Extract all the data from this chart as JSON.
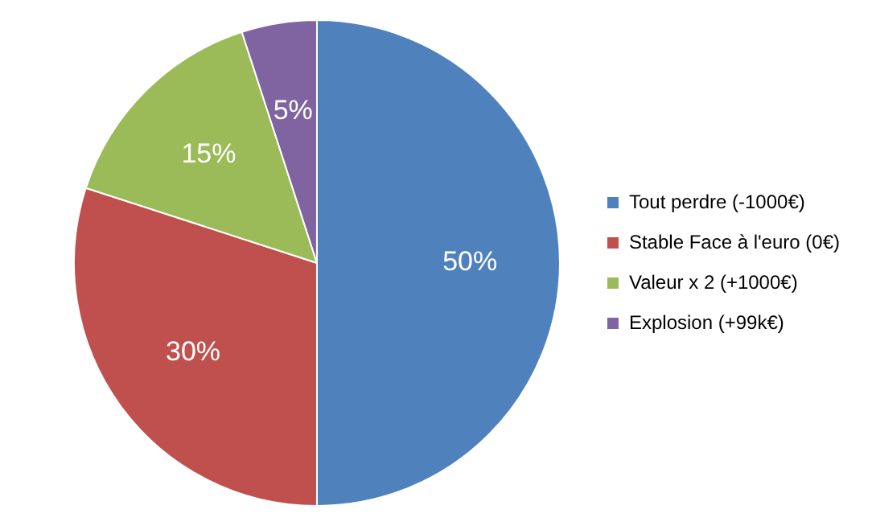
{
  "chart_data": {
    "type": "pie",
    "categories": [
      "Tout perdre (-1000€)",
      "Stable Face à l'euro (0€)",
      "Valeur x 2 (+1000€)",
      "Explosion (+99k€)"
    ],
    "values": [
      50,
      30,
      15,
      5
    ],
    "value_labels": [
      "50%",
      "30%",
      "15%",
      "5%"
    ],
    "colors": [
      "#4f81bd",
      "#c0504d",
      "#9bbb59",
      "#8064a2"
    ],
    "legend": "right"
  }
}
